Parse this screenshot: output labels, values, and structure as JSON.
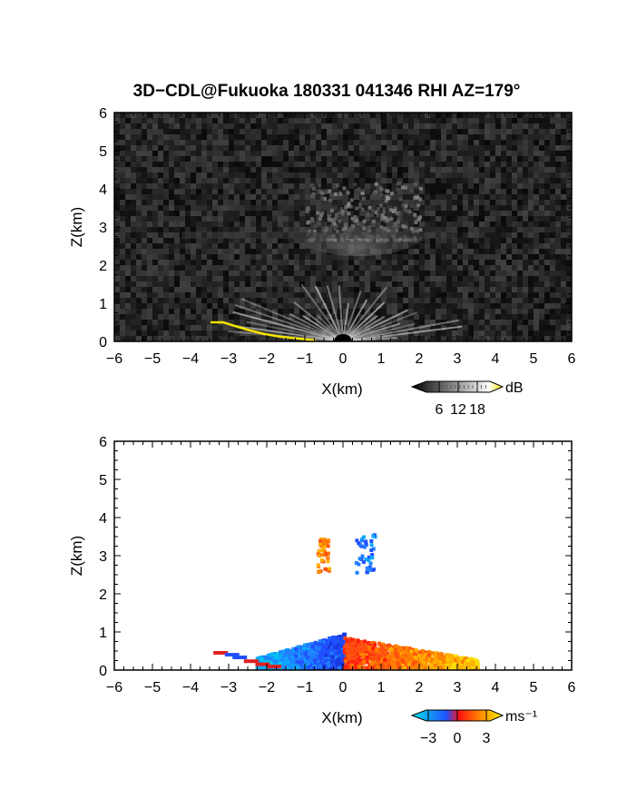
{
  "title": "3D−CDL@Fukuoka 180331 041346 RHI AZ=179°",
  "chart_data": [
    {
      "type": "heatmap",
      "panel": "top",
      "quantity": "backscatter intensity",
      "xlabel": "X(km)",
      "ylabel": "Z(km)",
      "xlim": [
        -6,
        6
      ],
      "ylim": [
        0,
        6
      ],
      "x_ticks": [
        "−6",
        "−5",
        "−4",
        "−3",
        "−2",
        "−1",
        "0",
        "1",
        "2",
        "3",
        "4",
        "5",
        "6"
      ],
      "y_ticks": [
        "0",
        "1",
        "2",
        "3",
        "4",
        "5",
        "6"
      ],
      "colorbar": {
        "unit": "dB",
        "ticks": [
          "6",
          "12",
          "18"
        ],
        "colors": [
          "#000000",
          "#ffffff",
          "#f5e400"
        ]
      },
      "features": [
        {
          "name": "near-ground echo fan",
          "x_range": [
            -3,
            3.5
          ],
          "z_range": [
            0,
            1.0
          ]
        },
        {
          "name": "elevated layer",
          "x_range": [
            -1,
            2
          ],
          "z_range": [
            2.7,
            4.2
          ]
        },
        {
          "name": "ground clutter line",
          "x_range": [
            -3.4,
            -0.8
          ],
          "z_range": [
            0,
            0.5
          ],
          "color": "#f5e400"
        }
      ]
    },
    {
      "type": "heatmap",
      "panel": "bottom",
      "quantity": "radial velocity",
      "xlabel": "X(km)",
      "ylabel": "Z(km)",
      "xlim": [
        -6,
        6
      ],
      "ylim": [
        0,
        6
      ],
      "x_ticks": [
        "−6",
        "−5",
        "−4",
        "−3",
        "−2",
        "−1",
        "0",
        "1",
        "2",
        "3",
        "4",
        "5",
        "6"
      ],
      "y_ticks": [
        "0",
        "1",
        "2",
        "3",
        "4",
        "5",
        "6"
      ],
      "colorbar": {
        "unit": "ms⁻¹",
        "ticks": [
          "−3",
          "0",
          "3"
        ],
        "colors": [
          "#00e8e8",
          "#2050ff",
          "#ff1010",
          "#f8f000"
        ]
      },
      "features": [
        {
          "name": "approaching flow",
          "x_range": [
            -2.3,
            0
          ],
          "z_range": [
            0,
            1.0
          ],
          "sign": "negative"
        },
        {
          "name": "receding flow",
          "x_range": [
            0,
            3.5
          ],
          "z_range": [
            0,
            0.9
          ],
          "sign": "positive"
        },
        {
          "name": "elevated receding cluster",
          "x_range": [
            -0.7,
            -0.4
          ],
          "z_range": [
            2.6,
            3.6
          ],
          "sign": "positive"
        },
        {
          "name": "elevated approaching cluster",
          "x_range": [
            0.3,
            0.8
          ],
          "z_range": [
            2.6,
            3.6
          ],
          "sign": "negative"
        }
      ]
    }
  ]
}
